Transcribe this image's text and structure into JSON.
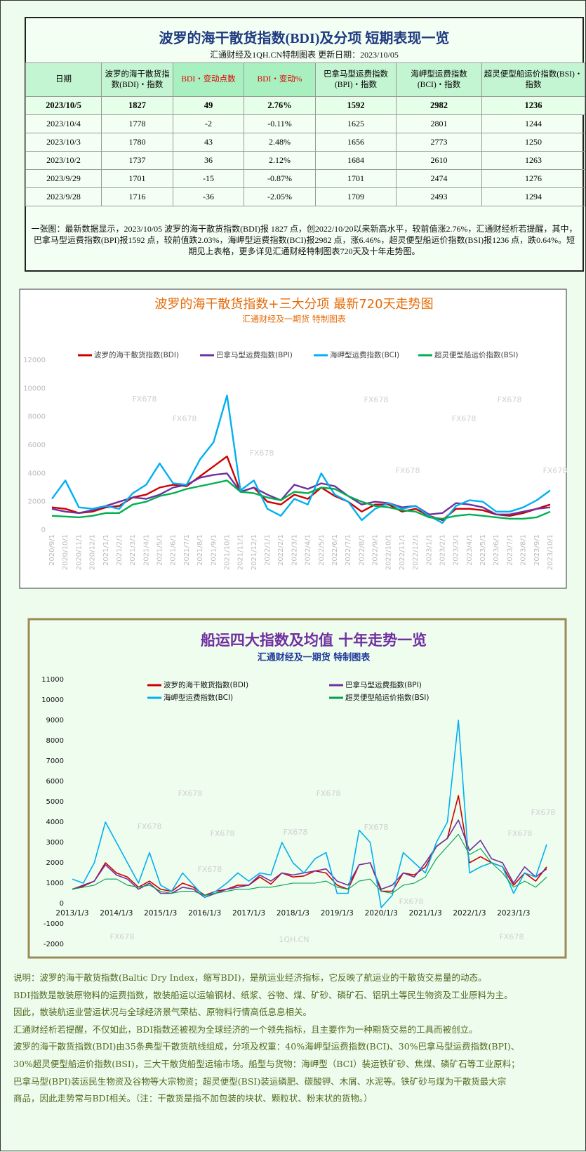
{
  "table_panel": {
    "title": "波罗的海干散货指数(BDI)及分项  短期表现一览",
    "subtitle": "汇通财经及1QH.CN特制图表    更新日期：2023/10/05",
    "header": [
      "日期",
      "波罗的海干散货指数(BDI)・指数",
      "BDI・变动点数",
      "BDI・变动%",
      "巴拿马型运费指数(BPI)・指数",
      "海岬型运费指数(BCI)・指数",
      "超灵便型船运价指数(BSI)・指数"
    ],
    "rows": [
      [
        "2023/10/5",
        1827,
        49,
        "2.76%",
        1592,
        2982,
        1236
      ],
      [
        "2023/10/4",
        1778,
        -2,
        "-0.11%",
        1625,
        2801,
        1244
      ],
      [
        "2023/10/3",
        1780,
        43,
        "2.48%",
        1656,
        2773,
        1250
      ],
      [
        "2023/10/2",
        1737,
        36,
        "2.12%",
        1684,
        2610,
        1263
      ],
      [
        "2023/9/29",
        1701,
        -15,
        "-0.87%",
        1701,
        2474,
        1276
      ],
      [
        "2023/9/28",
        1716,
        -36,
        "-2.05%",
        1709,
        2493,
        1294
      ]
    ],
    "note": "一张图：最新数据显示，2023/10/05 波罗的海干散货指数(BDI)报 1827 点，创2022/10/20以来新高水平，较前值涨2.76%，汇通财经析若提醒，其中，巴拿马型运费指数(BPI)报1592 点，较前值跌2.03%，海岬型运费指数(BCI)报2982 点，涨6.46%，超灵便型船运价指数(BSI)报1236 点，跌0.64%。短期见上表格，更多详见汇通财经特制图表720天及十年走势图。"
  },
  "chart_data": [
    {
      "type": "line",
      "title": "波罗的海干散货指数+三大分项  最新720天走势图",
      "subtitle": "汇通财经及一期货  特制图表",
      "categories": [
        "2020/9/1",
        "2020/10/1",
        "2020/11/1",
        "2020/12/1",
        "2021/1/1",
        "2021/2/1",
        "2021/3/1",
        "2021/4/1",
        "2021/5/1",
        "2021/6/1",
        "2021/7/1",
        "2021/8/1",
        "2021/9/1",
        "2021/10/1",
        "2021/11/1",
        "2021/12/1",
        "2022/1/1",
        "2022/2/1",
        "2022/3/1",
        "2022/4/1",
        "2022/5/1",
        "2022/6/1",
        "2022/7/1",
        "2022/8/1",
        "2022/9/1",
        "2022/10/1",
        "2022/11/1",
        "2022/12/1",
        "2023/1/1",
        "2023/2/1",
        "2023/3/1",
        "2023/4/1",
        "2023/5/1",
        "2023/6/1",
        "2023/7/1",
        "2023/8/1",
        "2023/9/1",
        "2023/10/1"
      ],
      "series": [
        {
          "name": "波罗的海干散货指数(BDI)",
          "color": "#cc0000",
          "values": [
            1600,
            1500,
            1200,
            1300,
            1600,
            1700,
            2300,
            2500,
            3000,
            3200,
            3100,
            3800,
            4500,
            5200,
            2700,
            3000,
            2000,
            1800,
            2500,
            2200,
            3000,
            2400,
            2000,
            1300,
            1800,
            1800,
            1300,
            1500,
            1000,
            700,
            1500,
            1500,
            1400,
            1100,
            1000,
            1200,
            1500,
            1800
          ]
        },
        {
          "name": "巴拿马型运费指数(BPI)",
          "color": "#7030a0",
          "values": [
            1500,
            1300,
            1200,
            1400,
            1700,
            2000,
            2300,
            2200,
            2500,
            3000,
            3200,
            3700,
            3900,
            4000,
            2700,
            3000,
            2500,
            2100,
            3200,
            2900,
            3300,
            3100,
            2400,
            1800,
            2000,
            1900,
            1600,
            1700,
            1100,
            1200,
            1900,
            1800,
            1600,
            1100,
            1100,
            1300,
            1500,
            1600
          ]
        },
        {
          "name": "海岬型运费指数(BCI)",
          "color": "#00b0f0",
          "values": [
            2200,
            3500,
            1600,
            1500,
            1700,
            1500,
            2600,
            3200,
            4700,
            3300,
            3200,
            5000,
            6200,
            9500,
            2800,
            3500,
            1500,
            1000,
            2200,
            1800,
            4000,
            2500,
            2000,
            700,
            1500,
            1900,
            1500,
            1700,
            1000,
            500,
            1700,
            2100,
            2000,
            1300,
            1300,
            1600,
            2100,
            2800
          ]
        },
        {
          "name": "超灵便型船运价指数(BSI)",
          "color": "#00b050",
          "values": [
            1000,
            950,
            900,
            1000,
            1200,
            1200,
            1800,
            2000,
            2400,
            2600,
            2900,
            3100,
            3300,
            3500,
            2700,
            2600,
            2300,
            2100,
            2700,
            2600,
            3000,
            2900,
            2400,
            2000,
            1700,
            1600,
            1400,
            1300,
            900,
            800,
            1000,
            1100,
            1000,
            900,
            800,
            800,
            900,
            1300
          ]
        }
      ],
      "ylim": [
        0,
        12000
      ],
      "yticks": [
        0,
        2000,
        4000,
        6000,
        8000,
        10000,
        12000
      ],
      "watermarks": [
        "FX678",
        "FX678",
        "FX678",
        "FX678",
        "FX678",
        "FX678",
        "FX678",
        "FX678"
      ]
    },
    {
      "type": "line",
      "title": "船运四大指数及均值 十年走势一览",
      "subtitle": "汇通财经及一期货 特制图表",
      "categories": [
        "2013/1/3",
        null,
        null,
        null,
        "2014/1/3",
        null,
        null,
        null,
        "2015/1/3",
        null,
        null,
        null,
        "2016/1/3",
        null,
        null,
        null,
        "2017/1/3",
        null,
        null,
        null,
        "2018/1/3",
        null,
        null,
        null,
        "2019/1/3",
        null,
        null,
        null,
        "2020/1/3",
        null,
        null,
        null,
        "2021/1/3",
        null,
        null,
        null,
        "2022/1/3",
        null,
        null,
        null,
        "2023/1/3",
        null,
        null,
        null
      ],
      "series": [
        {
          "name": "波罗的海干散货指数(BDI)",
          "color": "#cc0000",
          "values": [
            700,
            850,
            1100,
            2000,
            1500,
            1300,
            800,
            1100,
            700,
            600,
            1000,
            800,
            400,
            600,
            700,
            900,
            900,
            1300,
            950,
            1500,
            1300,
            1350,
            1600,
            1500,
            900,
            700,
            1900,
            2000,
            600,
            600,
            1500,
            1400,
            1800,
            2800,
            3200,
            5300,
            2000,
            2300,
            2000,
            1800,
            900,
            1500,
            1100,
            1800
          ]
        },
        {
          "name": "巴拿马型运费指数(BPI)",
          "color": "#7030a0",
          "values": [
            700,
            900,
            1100,
            1900,
            1400,
            1200,
            700,
            1000,
            500,
            500,
            800,
            700,
            300,
            500,
            700,
            800,
            900,
            1400,
            1100,
            1500,
            1400,
            1500,
            1600,
            1700,
            1100,
            900,
            1900,
            2000,
            700,
            900,
            1500,
            1300,
            2000,
            2800,
            3200,
            4100,
            2600,
            3100,
            2200,
            2000,
            1000,
            1800,
            1300,
            1700
          ]
        },
        {
          "name": "海岬型运费指数(BCI)",
          "color": "#00b0f0",
          "values": [
            1200,
            1000,
            2000,
            4000,
            3000,
            2000,
            1000,
            2500,
            900,
            600,
            1500,
            900,
            300,
            600,
            1000,
            1500,
            1100,
            1500,
            1400,
            3000,
            2000,
            1500,
            2200,
            2500,
            500,
            500,
            3600,
            3000,
            -200,
            400,
            2500,
            2000,
            1500,
            3000,
            4000,
            9000,
            1500,
            1800,
            2000,
            1800,
            500,
            1500,
            1300,
            2900
          ]
        },
        {
          "name": "超灵便型船运价指数(BSI)",
          "color": "#00a050",
          "values": [
            700,
            800,
            900,
            1200,
            1200,
            900,
            800,
            900,
            600,
            500,
            600,
            600,
            400,
            500,
            600,
            700,
            700,
            800,
            800,
            900,
            1000,
            1000,
            1000,
            1100,
            800,
            700,
            1100,
            1200,
            600,
            500,
            900,
            1000,
            1300,
            2200,
            2800,
            3400,
            2400,
            2700,
            2000,
            1500,
            800,
            1100,
            800,
            1300
          ]
        }
      ],
      "ylim": [
        -2000,
        11000
      ],
      "yticks": [
        -2000,
        -1000,
        0,
        1000,
        2000,
        3000,
        4000,
        5000,
        6000,
        7000,
        8000,
        9000,
        10000,
        11000
      ],
      "watermarks": [
        "FX678",
        "FX678",
        "FX678",
        "FX678",
        "FX678",
        "FX678",
        "FX678",
        "FX678",
        "FX678",
        "FX678",
        "FX678",
        "1QH.CN",
        "FX678"
      ]
    }
  ],
  "notes": [
    "说明：波罗的海干散货指数(Baltic Dry Index，缩写BDI)，是航运业经济指标，它反映了航运业的干散货交易量的动态。",
    "BDI指数是散装原物料的运费指数，散装船运以运输钢材、纸浆、谷物、煤、矿砂、磷矿石、铝矾土等民生物资及工业原料为主。",
    "因此，散装航运业营运状况与全球经济景气荣枯、原物料行情高低息息相关。",
    "汇通财经析若提醒，不仅如此，BDI指数还被视为全球经济的一个领先指标，且主要作为一种期货交易的工具而被创立。",
    "波罗的海干散货指数(BDI)由35条典型干散货航线组成，分项及权重：40%海岬型运费指数(BCI)、30%巴拿马型运费指数(BPI)、",
    "30%超灵便型船运价指数(BSI)，三大干散货船型运输市场。船型与货物：海岬型（BCI）装运铁矿砂、焦煤、磷矿石等工业原料；",
    "巴拿马型(BPI)装运民生物资及谷物等大宗物资；超灵便型(BSI)装运磷肥、碳酸钾、木屑、水泥等。铁矿砂与煤为干散货最大宗",
    "商品，因此走势常与BDI相关。（注：干散货是指不加包装的块状、颗粒状、粉末状的货物。）"
  ]
}
